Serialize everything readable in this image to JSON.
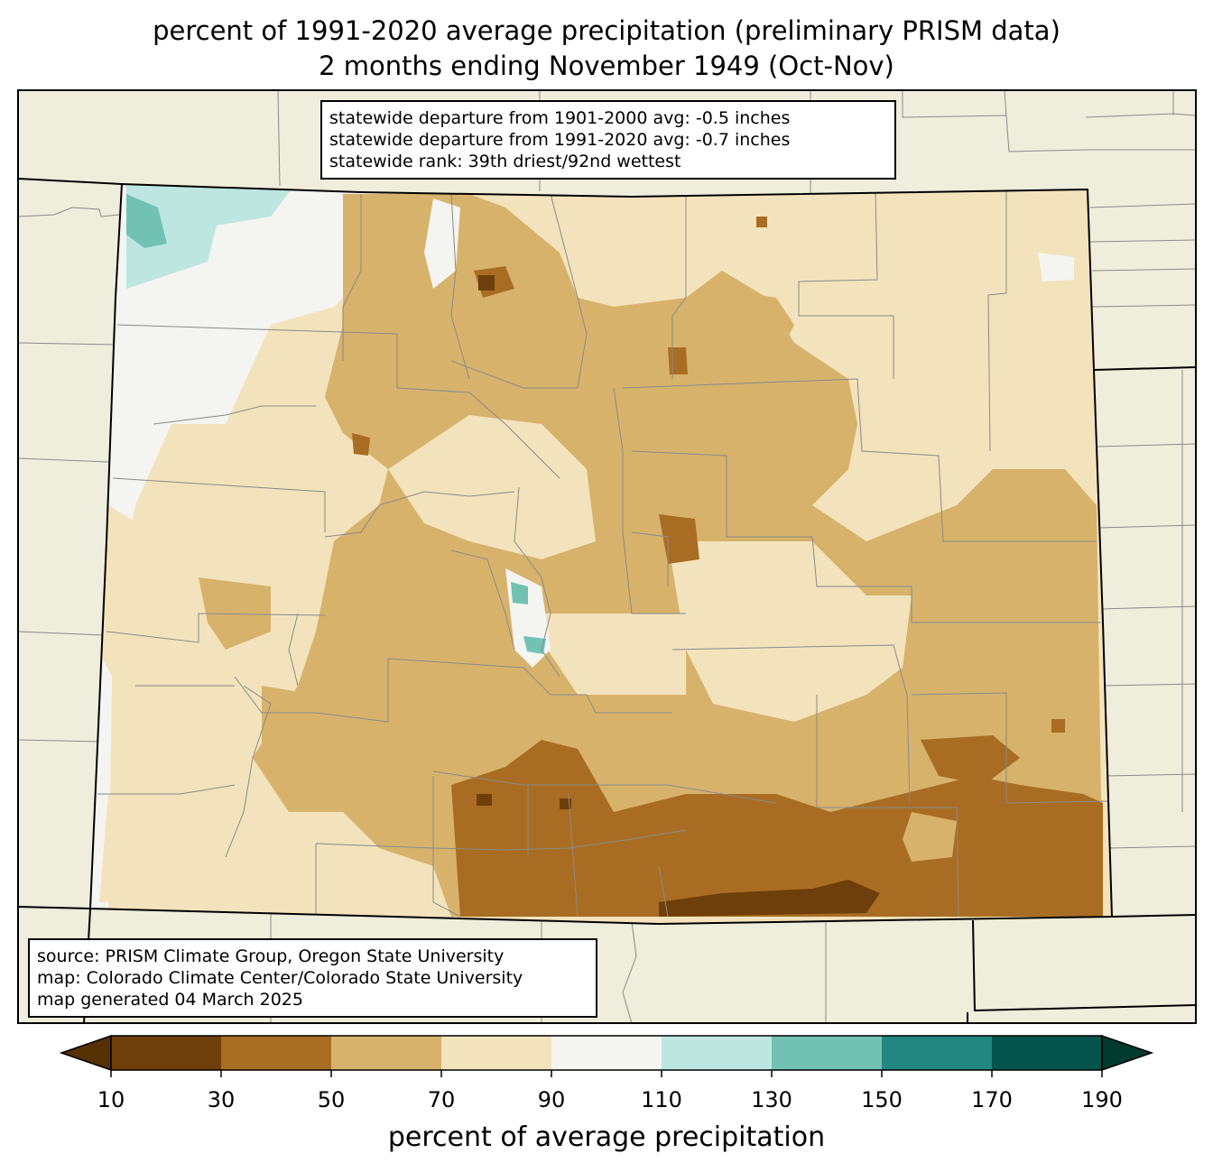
{
  "title": {
    "line1": "percent of 1991-2020 average precipitation (preliminary PRISM data)",
    "line2": "2 months ending November 1949 (Oct-Nov)"
  },
  "stats": {
    "line1": "statewide departure from 1901-2000 avg: -0.5 inches",
    "line2": "statewide departure from 1991-2020 avg: -0.7 inches",
    "line3": "statewide rank: 39th driest/92nd wettest"
  },
  "source": {
    "line1": "source: PRISM Climate Group, Oregon State University",
    "line2": "map: Colorado Climate Center/Colorado State University",
    "line3": "map generated 04 March 2025"
  },
  "colorbar": {
    "label": "percent of average precipitation",
    "ticks": [
      "10",
      "30",
      "50",
      "70",
      "90",
      "110",
      "130",
      "150",
      "170",
      "190"
    ],
    "bins": [
      {
        "range": "10-30",
        "color": "#6e3f0a"
      },
      {
        "range": "30-50",
        "color": "#a86d23"
      },
      {
        "range": "50-70",
        "color": "#d7b26b"
      },
      {
        "range": "70-90",
        "color": "#f3e3bc"
      },
      {
        "range": "90-110",
        "color": "#f4f4f1"
      },
      {
        "range": "110-130",
        "color": "#bde6e0"
      },
      {
        "range": "130-150",
        "color": "#72c2b3"
      },
      {
        "range": "150-170",
        "color": "#218780"
      },
      {
        "range": "170-190",
        "color": "#03544b"
      }
    ],
    "under_color": "#553003",
    "over_color": "#013b30"
  },
  "map_colors": {
    "land_outside": "#efeddb",
    "county_lines": "#8a8a8a",
    "state_lines": "#000000"
  }
}
